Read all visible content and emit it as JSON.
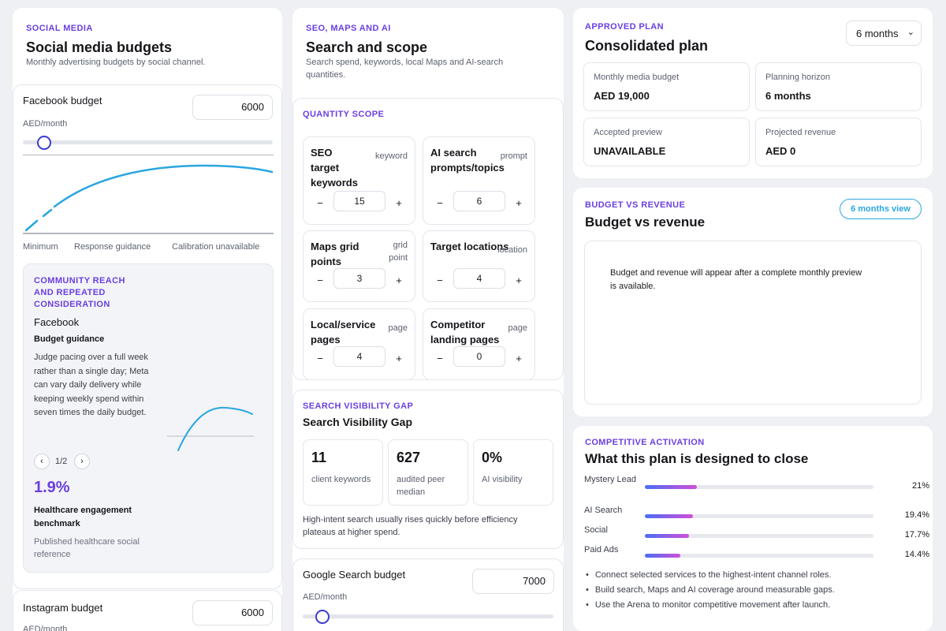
{
  "social": {
    "eyebrow": "SOCIAL MEDIA",
    "title": "Social media budgets",
    "subtitle": "Monthly advertising budgets by social channel.",
    "facebook": {
      "label": "Facebook budget",
      "value": "6000",
      "unit": "AED/month",
      "slider_fraction": 0.07,
      "axis_min": "Minimum",
      "axis_mid": "Response guidance",
      "axis_max": "Calibration unavailable"
    },
    "guidance": {
      "eyebrow": "COMMUNITY REACH AND REPEATED CONSIDERATION",
      "channel": "Facebook",
      "heading": "Budget guidance",
      "body": "Judge pacing over a full week rather than a single day; Meta can vary daily delivery while keeping weekly spend within seven times the daily budget.",
      "pager": "1/2",
      "prev_icon": "chevron-left-icon",
      "next_icon": "chevron-right-icon",
      "stat": "1.9%",
      "stat_label": "Healthcare engagement benchmark",
      "stat_source": "Published healthcare social reference"
    },
    "instagram": {
      "label": "Instagram budget",
      "value": "6000",
      "unit": "AED/month"
    }
  },
  "seo": {
    "eyebrow": "SEO, MAPS AND AI",
    "title": "Search and scope",
    "subtitle": "Search spend, keywords, local Maps and AI-search quantities.",
    "quantity_eyebrow": "QUANTITY SCOPE",
    "quantities": [
      {
        "title": "SEO target keywords",
        "unit": "keyword",
        "value": "15"
      },
      {
        "title": "AI search prompts/topics",
        "unit": "prompt",
        "value": "6"
      },
      {
        "title": "Maps grid points",
        "unit": "grid point",
        "value": "3"
      },
      {
        "title": "Target locations",
        "unit": "location",
        "value": "4"
      },
      {
        "title": "Local/service pages",
        "unit": "page",
        "value": "4"
      },
      {
        "title": "Competitor landing pages",
        "unit": "page",
        "value": "0"
      }
    ],
    "minus": "−",
    "plus": "+",
    "gap": {
      "eyebrow": "SEARCH VISIBILITY GAP",
      "title": "Search Visibility Gap",
      "metrics": [
        {
          "value": "11",
          "label": "client keywords"
        },
        {
          "value": "627",
          "label": "audited peer median"
        },
        {
          "value": "0%",
          "label": "AI visibility"
        }
      ],
      "note": "High-intent search usually rises quickly before efficiency plateaus at higher spend."
    },
    "google": {
      "label": "Google Search budget",
      "value": "7000",
      "unit": "AED/month",
      "slider_fraction": 0.08
    }
  },
  "plan": {
    "eyebrow": "APPROVED PLAN",
    "title": "Consolidated plan",
    "horizon_select": "6 months",
    "metrics": [
      {
        "label": "Monthly media budget",
        "value": "AED 19,000"
      },
      {
        "label": "Planning horizon",
        "value": "6 months"
      },
      {
        "label": "Accepted preview",
        "value": "UNAVAILABLE"
      },
      {
        "label": "Projected revenue",
        "value": "AED 0"
      }
    ]
  },
  "revenue": {
    "eyebrow": "BUDGET VS REVENUE",
    "title": "Budget vs revenue",
    "view_button": "6 months view",
    "empty_text": "Budget and revenue will appear after a complete monthly preview is available."
  },
  "activation": {
    "eyebrow": "COMPETITIVE ACTIVATION",
    "title": "What this plan is designed to close",
    "bars": [
      {
        "label": "Mystery Lead",
        "pct_text": "21%",
        "value": 21
      },
      {
        "label": "AI Search",
        "pct_text": "19.4%",
        "value": 19.4
      },
      {
        "label": "Social",
        "pct_text": "17.7%",
        "value": 17.7
      },
      {
        "label": "Paid Ads",
        "pct_text": "14.4%",
        "value": 14.4
      }
    ],
    "bullets": [
      "Connect selected services to the highest-intent channel roles.",
      "Build search, Maps and AI coverage around measurable gaps.",
      "Use the Arena to monitor competitive movement after launch."
    ]
  },
  "colors": {
    "accent": "#6a3fe0",
    "curve": "#2aa6e0",
    "slider": "#3b3bd0"
  }
}
